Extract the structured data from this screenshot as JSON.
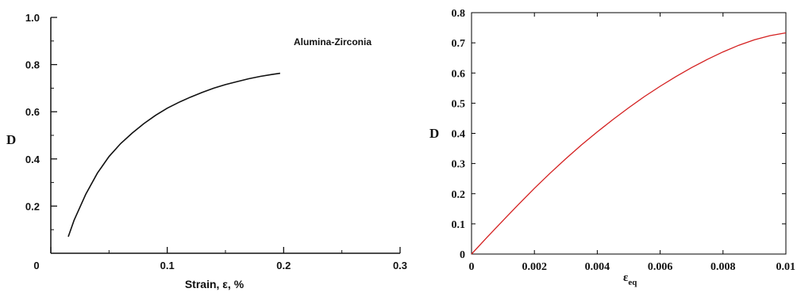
{
  "chart_data": [
    {
      "type": "line",
      "title": "",
      "annotation": "Alumina-Zirconia",
      "xlabel": "Strain, ε, %",
      "ylabel": "D",
      "xlim": [
        0,
        0.3
      ],
      "ylim": [
        0,
        1.0
      ],
      "xticks": [
        "0",
        "0.1",
        "0.2",
        "0.3"
      ],
      "yticks": [
        "0.2",
        "0.4",
        "0.6",
        "0.8",
        "1.0"
      ],
      "grid": false,
      "line_color": "#111111",
      "series": [
        {
          "x": [
            0.015,
            0.02,
            0.03,
            0.04,
            0.05,
            0.06,
            0.07,
            0.08,
            0.09,
            0.1,
            0.11,
            0.12,
            0.13,
            0.14,
            0.15,
            0.16,
            0.17,
            0.18,
            0.19,
            0.197
          ],
          "values": [
            0.07,
            0.14,
            0.25,
            0.34,
            0.41,
            0.465,
            0.51,
            0.55,
            0.585,
            0.615,
            0.64,
            0.662,
            0.682,
            0.7,
            0.715,
            0.728,
            0.74,
            0.75,
            0.758,
            0.763
          ]
        }
      ]
    },
    {
      "type": "line",
      "title": "",
      "xlabel": "ε",
      "xlabel_sub": "eq",
      "ylabel": "D",
      "xlim": [
        0,
        0.01
      ],
      "ylim": [
        0,
        0.8
      ],
      "xticks": [
        "0",
        "0.002",
        "0.004",
        "0.006",
        "0.008",
        "0.01"
      ],
      "yticks": [
        "0",
        "0.1",
        "0.2",
        "0.3",
        "0.4",
        "0.5",
        "0.6",
        "0.7",
        "0.8"
      ],
      "grid": false,
      "line_color": "#d42020",
      "series": [
        {
          "x": [
            0,
            0.0005,
            0.001,
            0.0015,
            0.002,
            0.0025,
            0.003,
            0.0035,
            0.004,
            0.0045,
            0.005,
            0.0055,
            0.006,
            0.0065,
            0.007,
            0.0075,
            0.008,
            0.0085,
            0.009,
            0.0095,
            0.01
          ],
          "values": [
            0,
            0.056,
            0.111,
            0.165,
            0.218,
            0.268,
            0.316,
            0.362,
            0.405,
            0.446,
            0.485,
            0.522,
            0.556,
            0.588,
            0.618,
            0.645,
            0.67,
            0.692,
            0.71,
            0.724,
            0.733
          ]
        }
      ]
    }
  ]
}
